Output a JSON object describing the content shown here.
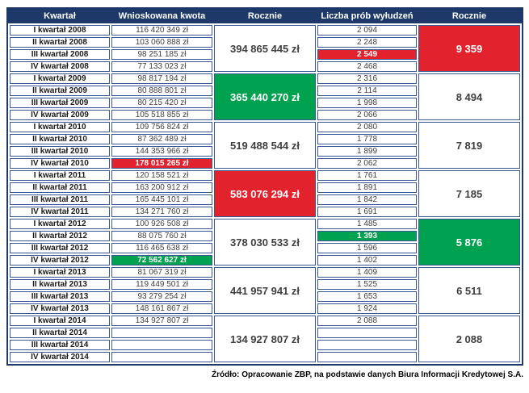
{
  "chart_data": {
    "type": "table",
    "columns": [
      "Kwartał",
      "Wnioskowana kwota",
      "Rocznie",
      "Liczba prób wyłudzeń",
      "Rocznie"
    ],
    "years": [
      {
        "annual_amount": "394 865 445 zł",
        "annual_amount_highlight": "none",
        "annual_count": "9 359",
        "annual_count_highlight": "red",
        "quarters": [
          {
            "label": "I kwartał 2008",
            "amount": "116 420 349 zł",
            "count": "2 094"
          },
          {
            "label": "II kwartał 2008",
            "amount": "103 060 888 zł",
            "count": "2 248"
          },
          {
            "label": "III kwartał 2008",
            "amount": "98 251 185 zł",
            "count": "2 549",
            "count_highlight": "red"
          },
          {
            "label": "IV kwartał 2008",
            "amount": "77 133 023 zł",
            "count": "2 468"
          }
        ]
      },
      {
        "annual_amount": "365 440 270 zł",
        "annual_amount_highlight": "green",
        "annual_count": "8 494",
        "annual_count_highlight": "none",
        "quarters": [
          {
            "label": "I kwartał 2009",
            "amount": "98 817 194 zł",
            "count": "2 316"
          },
          {
            "label": "II kwartał 2009",
            "amount": "80 888 801 zł",
            "count": "2 114"
          },
          {
            "label": "III kwartał 2009",
            "amount": "80 215 420 zł",
            "count": "1 998"
          },
          {
            "label": "IV kwartał 2009",
            "amount": "105 518 855 zł",
            "count": "2 066"
          }
        ]
      },
      {
        "annual_amount": "519 488 544 zł",
        "annual_amount_highlight": "none",
        "annual_count": "7 819",
        "annual_count_highlight": "none",
        "quarters": [
          {
            "label": "I kwartał 2010",
            "amount": "109 756 824 zł",
            "count": "2 080"
          },
          {
            "label": "II kwartał 2010",
            "amount": "87 362 489 zł",
            "count": "1 778"
          },
          {
            "label": "III kwartał 2010",
            "amount": "144 353 966 zł",
            "count": "1 899"
          },
          {
            "label": "IV kwartał 2010",
            "amount": "178 015 265 zł",
            "amount_highlight": "red",
            "count": "2 062"
          }
        ]
      },
      {
        "annual_amount": "583 076 294 zł",
        "annual_amount_highlight": "red",
        "annual_count": "7 185",
        "annual_count_highlight": "none",
        "quarters": [
          {
            "label": "I kwartał 2011",
            "amount": "120 158 521 zł",
            "count": "1 761"
          },
          {
            "label": "II kwartał 2011",
            "amount": "163 200 912 zł",
            "count": "1 891"
          },
          {
            "label": "III kwartał 2011",
            "amount": "165 445 101 zł",
            "count": "1 842"
          },
          {
            "label": "IV kwartał 2011",
            "amount": "134 271 760 zł",
            "count": "1 691"
          }
        ]
      },
      {
        "annual_amount": "378 030 533 zł",
        "annual_amount_highlight": "none",
        "annual_count": "5 876",
        "annual_count_highlight": "green",
        "quarters": [
          {
            "label": "I kwartał 2012",
            "amount": "100 926 508 zł",
            "count": "1 485"
          },
          {
            "label": "II kwartał 2012",
            "amount": "88 075 760 zł",
            "count": "1 393",
            "count_highlight": "green"
          },
          {
            "label": "III kwartał 2012",
            "amount": "116 465 638 zł",
            "count": "1 596"
          },
          {
            "label": "IV kwartał 2012",
            "amount": "72 562 627 zł",
            "amount_highlight": "green",
            "count": "1 402"
          }
        ]
      },
      {
        "annual_amount": "441 957 941 zł",
        "annual_amount_highlight": "none",
        "annual_count": "6 511",
        "annual_count_highlight": "none",
        "quarters": [
          {
            "label": "I kwartał 2013",
            "amount": "81 067 319 zł",
            "count": "1 409"
          },
          {
            "label": "II kwartał 2013",
            "amount": "119 449 501 zł",
            "count": "1 525"
          },
          {
            "label": "III kwartał 2013",
            "amount": "93 279 254 zł",
            "count": "1 653"
          },
          {
            "label": "IV kwartał 2013",
            "amount": "148 161 867 zł",
            "count": "1 924"
          }
        ]
      },
      {
        "annual_amount": "134 927 807 zł",
        "annual_amount_highlight": "none",
        "annual_count": "2 088",
        "annual_count_highlight": "none",
        "quarters": [
          {
            "label": "I kwartał 2014",
            "amount": "134 927 807 zł",
            "count": "2 088"
          },
          {
            "label": "II kwartał 2014",
            "amount": "",
            "count": ""
          },
          {
            "label": "III kwartał 2014",
            "amount": "",
            "count": ""
          },
          {
            "label": "IV kwartał 2014",
            "amount": "",
            "count": ""
          }
        ]
      }
    ],
    "source": "Źródło: Opracowanie ZBP, na podstawie danych Biura Informacji Kredytowej S.A."
  },
  "colors": {
    "header_bg": "#1d3869",
    "cell_border": "#3a5795",
    "highlight_red": "#e2232d",
    "highlight_green": "#00a24f"
  }
}
